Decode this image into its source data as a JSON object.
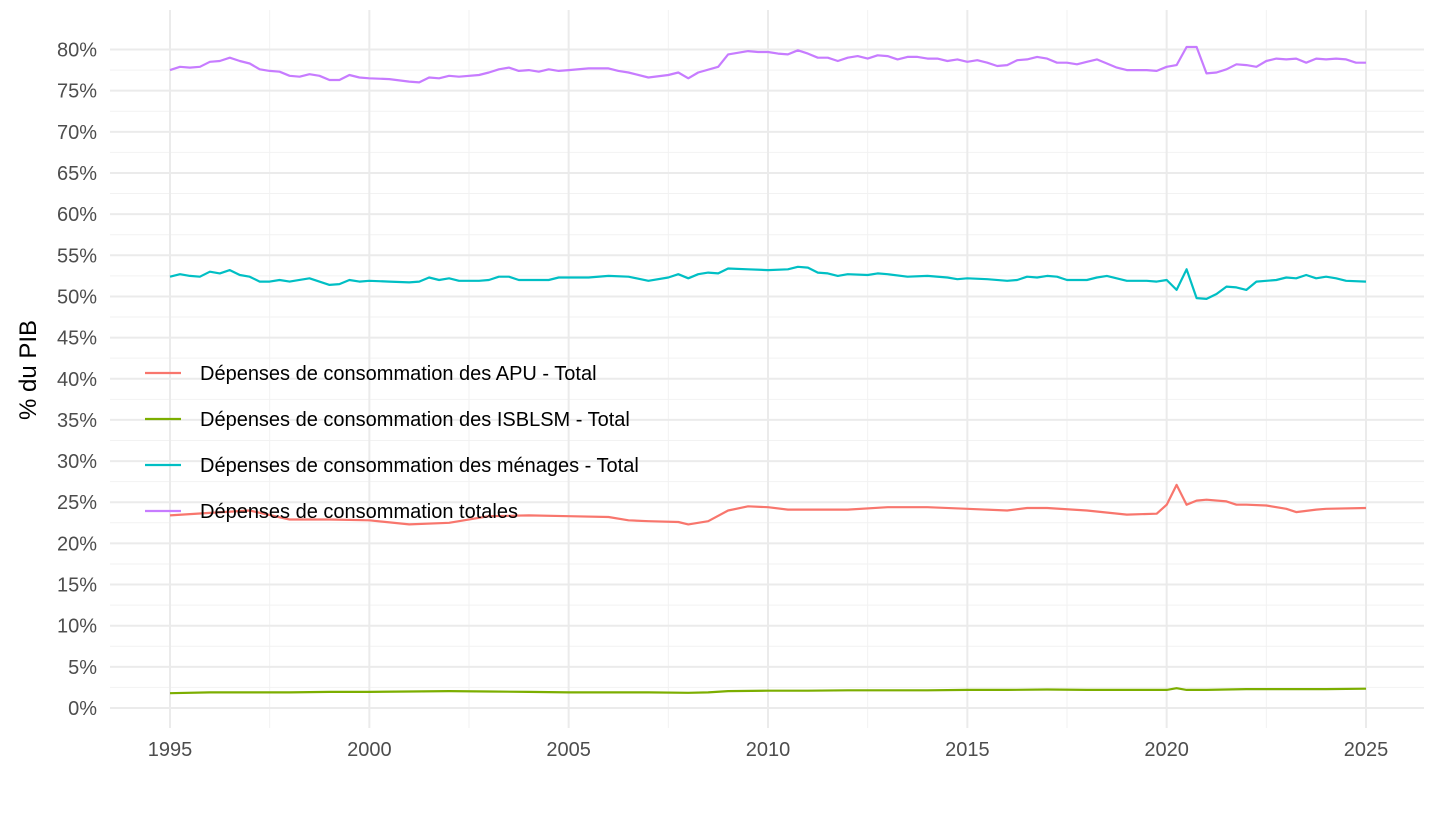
{
  "chart_data": {
    "type": "line",
    "title": "",
    "xlabel": "",
    "ylabel": "% du PIB",
    "xlim": [
      1995,
      2025
    ],
    "ylim": [
      0,
      80
    ],
    "x_ticks": [
      "1995",
      "2000",
      "2005",
      "2010",
      "2015",
      "2020",
      "2025"
    ],
    "y_ticks": [
      "0%",
      "5%",
      "10%",
      "15%",
      "20%",
      "25%",
      "30%",
      "35%",
      "40%",
      "45%",
      "50%",
      "55%",
      "60%",
      "65%",
      "70%",
      "75%",
      "80%"
    ],
    "grid": true,
    "legend_position": "inside-left",
    "series": [
      {
        "name": "Dépenses de consommation des APU - Total",
        "color": "#F8766D",
        "points": [
          [
            1995,
            23.4
          ],
          [
            1996,
            23.7
          ],
          [
            1997,
            24.0
          ],
          [
            1998,
            22.9
          ],
          [
            1999,
            22.9
          ],
          [
            2000,
            22.8
          ],
          [
            2001,
            22.3
          ],
          [
            2002,
            22.5
          ],
          [
            2003,
            23.3
          ],
          [
            2004,
            23.4
          ],
          [
            2005,
            23.3
          ],
          [
            2006,
            23.2
          ],
          [
            2006.5,
            22.8
          ],
          [
            2007,
            22.7
          ],
          [
            2007.75,
            22.6
          ],
          [
            2008,
            22.3
          ],
          [
            2008.5,
            22.7
          ],
          [
            2009,
            24.0
          ],
          [
            2009.5,
            24.5
          ],
          [
            2010,
            24.4
          ],
          [
            2010.5,
            24.1
          ],
          [
            2011,
            24.1
          ],
          [
            2012,
            24.1
          ],
          [
            2013,
            24.4
          ],
          [
            2014,
            24.4
          ],
          [
            2015,
            24.2
          ],
          [
            2016,
            24.0
          ],
          [
            2016.5,
            24.3
          ],
          [
            2017,
            24.3
          ],
          [
            2018,
            24.0
          ],
          [
            2019,
            23.5
          ],
          [
            2019.75,
            23.6
          ],
          [
            2020,
            24.7
          ],
          [
            2020.25,
            27.1
          ],
          [
            2020.5,
            24.7
          ],
          [
            2020.75,
            25.2
          ],
          [
            2021,
            25.3
          ],
          [
            2021.5,
            25.1
          ],
          [
            2021.75,
            24.7
          ],
          [
            2022,
            24.7
          ],
          [
            2022.5,
            24.6
          ],
          [
            2023,
            24.2
          ],
          [
            2023.25,
            23.8
          ],
          [
            2023.75,
            24.1
          ],
          [
            2024,
            24.2
          ],
          [
            2025,
            24.3
          ]
        ]
      },
      {
        "name": "Dépenses de consommation des ISBLSM - Total",
        "color": "#7CAE00",
        "points": [
          [
            1995,
            1.8
          ],
          [
            1996,
            1.9
          ],
          [
            1997,
            1.9
          ],
          [
            1998,
            1.9
          ],
          [
            1999,
            1.95
          ],
          [
            2000,
            1.95
          ],
          [
            2001,
            2.0
          ],
          [
            2002,
            2.05
          ],
          [
            2003,
            2.0
          ],
          [
            2004,
            1.95
          ],
          [
            2005,
            1.9
          ],
          [
            2006,
            1.9
          ],
          [
            2007,
            1.9
          ],
          [
            2008,
            1.85
          ],
          [
            2008.5,
            1.9
          ],
          [
            2009,
            2.05
          ],
          [
            2010,
            2.1
          ],
          [
            2011,
            2.1
          ],
          [
            2012,
            2.15
          ],
          [
            2013,
            2.15
          ],
          [
            2014,
            2.15
          ],
          [
            2015,
            2.2
          ],
          [
            2016,
            2.2
          ],
          [
            2017,
            2.25
          ],
          [
            2018,
            2.2
          ],
          [
            2019,
            2.2
          ],
          [
            2020,
            2.2
          ],
          [
            2020.25,
            2.4
          ],
          [
            2020.5,
            2.2
          ],
          [
            2021,
            2.2
          ],
          [
            2022,
            2.3
          ],
          [
            2023,
            2.3
          ],
          [
            2024,
            2.3
          ],
          [
            2025,
            2.35
          ]
        ]
      },
      {
        "name": "Dépenses de consommation des ménages - Total",
        "color": "#00BFC4",
        "points": [
          [
            1995,
            52.4
          ],
          [
            1995.25,
            52.7
          ],
          [
            1995.5,
            52.5
          ],
          [
            1995.75,
            52.4
          ],
          [
            1996,
            53.0
          ],
          [
            1996.25,
            52.8
          ],
          [
            1996.5,
            53.2
          ],
          [
            1996.75,
            52.6
          ],
          [
            1997,
            52.4
          ],
          [
            1997.25,
            51.8
          ],
          [
            1997.5,
            51.8
          ],
          [
            1997.75,
            52.0
          ],
          [
            1998,
            51.8
          ],
          [
            1998.5,
            52.2
          ],
          [
            1999,
            51.4
          ],
          [
            1999.25,
            51.5
          ],
          [
            1999.5,
            52.0
          ],
          [
            1999.75,
            51.8
          ],
          [
            2000,
            51.9
          ],
          [
            2000.5,
            51.8
          ],
          [
            2001,
            51.7
          ],
          [
            2001.25,
            51.8
          ],
          [
            2001.5,
            52.3
          ],
          [
            2001.75,
            52.0
          ],
          [
            2002,
            52.2
          ],
          [
            2002.25,
            51.9
          ],
          [
            2002.75,
            51.9
          ],
          [
            2003,
            52.0
          ],
          [
            2003.25,
            52.4
          ],
          [
            2003.5,
            52.4
          ],
          [
            2003.75,
            52.0
          ],
          [
            2004,
            52.0
          ],
          [
            2004.5,
            52.0
          ],
          [
            2004.75,
            52.3
          ],
          [
            2005,
            52.3
          ],
          [
            2005.5,
            52.3
          ],
          [
            2006,
            52.5
          ],
          [
            2006.5,
            52.4
          ],
          [
            2007,
            51.9
          ],
          [
            2007.5,
            52.3
          ],
          [
            2007.75,
            52.7
          ],
          [
            2008,
            52.2
          ],
          [
            2008.25,
            52.7
          ],
          [
            2008.5,
            52.9
          ],
          [
            2008.75,
            52.8
          ],
          [
            2009,
            53.4
          ],
          [
            2009.5,
            53.3
          ],
          [
            2010,
            53.2
          ],
          [
            2010.5,
            53.3
          ],
          [
            2010.75,
            53.6
          ],
          [
            2011,
            53.5
          ],
          [
            2011.25,
            52.9
          ],
          [
            2011.5,
            52.8
          ],
          [
            2011.75,
            52.5
          ],
          [
            2012,
            52.7
          ],
          [
            2012.5,
            52.6
          ],
          [
            2012.75,
            52.8
          ],
          [
            2013,
            52.7
          ],
          [
            2013.5,
            52.4
          ],
          [
            2014,
            52.5
          ],
          [
            2014.5,
            52.3
          ],
          [
            2014.75,
            52.1
          ],
          [
            2015,
            52.2
          ],
          [
            2015.5,
            52.1
          ],
          [
            2016,
            51.9
          ],
          [
            2016.25,
            52.0
          ],
          [
            2016.5,
            52.4
          ],
          [
            2016.75,
            52.3
          ],
          [
            2017,
            52.5
          ],
          [
            2017.25,
            52.4
          ],
          [
            2017.5,
            52.0
          ],
          [
            2018,
            52.0
          ],
          [
            2018.25,
            52.3
          ],
          [
            2018.5,
            52.5
          ],
          [
            2019,
            51.9
          ],
          [
            2019.5,
            51.9
          ],
          [
            2019.75,
            51.8
          ],
          [
            2020,
            52.0
          ],
          [
            2020.25,
            50.8
          ],
          [
            2020.5,
            53.3
          ],
          [
            2020.75,
            49.8
          ],
          [
            2021,
            49.7
          ],
          [
            2021.25,
            50.3
          ],
          [
            2021.5,
            51.2
          ],
          [
            2021.75,
            51.1
          ],
          [
            2022,
            50.8
          ],
          [
            2022.25,
            51.8
          ],
          [
            2022.5,
            51.9
          ],
          [
            2022.75,
            52.0
          ],
          [
            2023,
            52.3
          ],
          [
            2023.25,
            52.2
          ],
          [
            2023.5,
            52.6
          ],
          [
            2023.75,
            52.2
          ],
          [
            2024,
            52.4
          ],
          [
            2024.25,
            52.2
          ],
          [
            2024.5,
            51.9
          ],
          [
            2025,
            51.8
          ]
        ]
      },
      {
        "name": "Dépenses de consommation totales",
        "color": "#C77CFF",
        "points": [
          [
            1995,
            77.5
          ],
          [
            1995.25,
            77.9
          ],
          [
            1995.5,
            77.8
          ],
          [
            1995.75,
            77.9
          ],
          [
            1996,
            78.5
          ],
          [
            1996.25,
            78.6
          ],
          [
            1996.5,
            79.0
          ],
          [
            1996.75,
            78.6
          ],
          [
            1997,
            78.3
          ],
          [
            1997.25,
            77.6
          ],
          [
            1997.5,
            77.4
          ],
          [
            1997.75,
            77.3
          ],
          [
            1998,
            76.8
          ],
          [
            1998.25,
            76.7
          ],
          [
            1998.5,
            77.0
          ],
          [
            1998.75,
            76.8
          ],
          [
            1999,
            76.3
          ],
          [
            1999.25,
            76.3
          ],
          [
            1999.5,
            76.9
          ],
          [
            1999.75,
            76.6
          ],
          [
            2000,
            76.5
          ],
          [
            2000.5,
            76.4
          ],
          [
            2001,
            76.1
          ],
          [
            2001.25,
            76.0
          ],
          [
            2001.5,
            76.6
          ],
          [
            2001.75,
            76.5
          ],
          [
            2002,
            76.8
          ],
          [
            2002.25,
            76.7
          ],
          [
            2002.75,
            76.9
          ],
          [
            2003,
            77.2
          ],
          [
            2003.25,
            77.6
          ],
          [
            2003.5,
            77.8
          ],
          [
            2003.75,
            77.4
          ],
          [
            2004,
            77.5
          ],
          [
            2004.25,
            77.3
          ],
          [
            2004.5,
            77.6
          ],
          [
            2004.75,
            77.4
          ],
          [
            2005,
            77.5
          ],
          [
            2005.5,
            77.7
          ],
          [
            2006,
            77.7
          ],
          [
            2006.25,
            77.4
          ],
          [
            2006.5,
            77.2
          ],
          [
            2007,
            76.6
          ],
          [
            2007.5,
            76.9
          ],
          [
            2007.75,
            77.2
          ],
          [
            2008,
            76.5
          ],
          [
            2008.25,
            77.2
          ],
          [
            2008.75,
            77.9
          ],
          [
            2009,
            79.4
          ],
          [
            2009.5,
            79.8
          ],
          [
            2009.75,
            79.7
          ],
          [
            2010,
            79.7
          ],
          [
            2010.25,
            79.5
          ],
          [
            2010.5,
            79.4
          ],
          [
            2010.75,
            79.9
          ],
          [
            2011,
            79.5
          ],
          [
            2011.25,
            79.0
          ],
          [
            2011.5,
            79.0
          ],
          [
            2011.75,
            78.6
          ],
          [
            2012,
            79.0
          ],
          [
            2012.25,
            79.2
          ],
          [
            2012.5,
            78.9
          ],
          [
            2012.75,
            79.3
          ],
          [
            2013,
            79.2
          ],
          [
            2013.25,
            78.8
          ],
          [
            2013.5,
            79.1
          ],
          [
            2013.75,
            79.1
          ],
          [
            2014,
            78.9
          ],
          [
            2014.25,
            78.9
          ],
          [
            2014.5,
            78.6
          ],
          [
            2014.75,
            78.8
          ],
          [
            2015,
            78.5
          ],
          [
            2015.25,
            78.7
          ],
          [
            2015.5,
            78.4
          ],
          [
            2015.75,
            78.0
          ],
          [
            2016,
            78.1
          ],
          [
            2016.25,
            78.7
          ],
          [
            2016.5,
            78.8
          ],
          [
            2016.75,
            79.1
          ],
          [
            2017,
            78.9
          ],
          [
            2017.25,
            78.4
          ],
          [
            2017.5,
            78.4
          ],
          [
            2017.75,
            78.2
          ],
          [
            2018,
            78.5
          ],
          [
            2018.25,
            78.8
          ],
          [
            2018.5,
            78.3
          ],
          [
            2018.75,
            77.8
          ],
          [
            2019,
            77.5
          ],
          [
            2019.5,
            77.5
          ],
          [
            2019.75,
            77.4
          ],
          [
            2020,
            77.9
          ],
          [
            2020.25,
            78.1
          ],
          [
            2020.5,
            80.3
          ],
          [
            2020.75,
            80.3
          ],
          [
            2021,
            77.1
          ],
          [
            2021.25,
            77.2
          ],
          [
            2021.5,
            77.6
          ],
          [
            2021.75,
            78.2
          ],
          [
            2022,
            78.1
          ],
          [
            2022.25,
            77.9
          ],
          [
            2022.5,
            78.6
          ],
          [
            2022.75,
            78.9
          ],
          [
            2023,
            78.8
          ],
          [
            2023.25,
            78.9
          ],
          [
            2023.5,
            78.4
          ],
          [
            2023.75,
            78.9
          ],
          [
            2024,
            78.8
          ],
          [
            2024.25,
            78.9
          ],
          [
            2024.5,
            78.8
          ],
          [
            2024.75,
            78.4
          ],
          [
            2025,
            78.4
          ]
        ]
      }
    ]
  }
}
